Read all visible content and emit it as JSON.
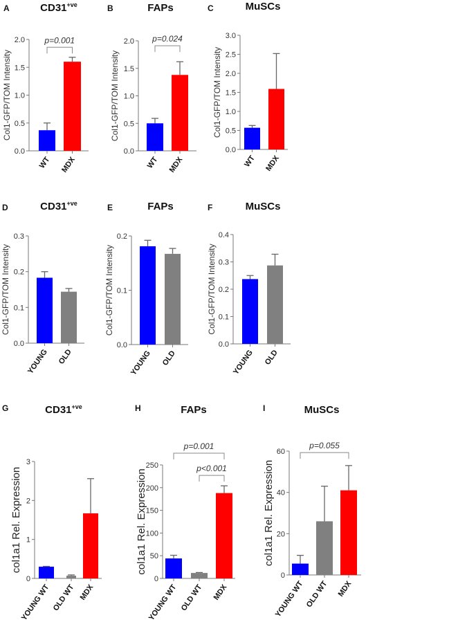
{
  "colors": {
    "blue": "#0000ff",
    "red": "#ff0000",
    "grey": "#808080",
    "axis": "#777777",
    "error": "#666666"
  },
  "chart_data": [
    {
      "id": "A",
      "type": "bar",
      "title": "CD31",
      "title_sup": "+ve",
      "ylabel": "Col1-GFP/TOM Intensity",
      "ylim": [
        0,
        2.0
      ],
      "ticks": [
        "0.0",
        "0.5",
        "1.0",
        "1.5",
        "2.0"
      ],
      "tick_values": [
        0,
        0.5,
        1,
        1.5,
        2
      ],
      "categories": [
        "WT",
        "MDX"
      ],
      "values": [
        0.37,
        1.6
      ],
      "errors_upper": [
        0.5,
        1.68
      ],
      "colors": [
        "blue",
        "red"
      ],
      "brackets": [
        {
          "from": 0,
          "to": 1,
          "level": 1.86,
          "label": "p=0.001"
        }
      ]
    },
    {
      "id": "B",
      "type": "bar",
      "title": "FAPs",
      "title_sup": "",
      "ylabel": "Col1-GFP/TOM Intensity",
      "ylim": [
        0,
        2.0
      ],
      "ticks": [
        "0.0",
        "0.5",
        "1.0",
        "1.5",
        "2.0"
      ],
      "tick_values": [
        0,
        0.5,
        1,
        1.5,
        2
      ],
      "categories": [
        "WT",
        "MDX"
      ],
      "values": [
        0.5,
        1.38
      ],
      "errors_upper": [
        0.59,
        1.62
      ],
      "colors": [
        "blue",
        "red"
      ],
      "brackets": [
        {
          "from": 0,
          "to": 1,
          "level": 1.91,
          "label": "p=0.024"
        }
      ]
    },
    {
      "id": "C",
      "type": "bar",
      "title": "MuSCs",
      "title_sup": "",
      "ylabel": "Col1-GFP/TOM Intensity",
      "ylim": [
        0,
        3.0
      ],
      "ticks": [
        "0.0",
        "0.5",
        "1.0",
        "1.5",
        "2.0",
        "2.5",
        "3.0"
      ],
      "tick_values": [
        0,
        0.5,
        1,
        1.5,
        2,
        2.5,
        3
      ],
      "categories": [
        "WT",
        "MDX"
      ],
      "values": [
        0.57,
        1.59
      ],
      "errors_upper": [
        0.63,
        2.52
      ],
      "colors": [
        "blue",
        "red"
      ],
      "brackets": []
    },
    {
      "id": "D",
      "type": "bar",
      "title": "CD31",
      "title_sup": "+ve",
      "ylabel": "Col1-GFP/TOM Intensity",
      "ylim": [
        0,
        0.3
      ],
      "ticks": [
        "0.0",
        "0.1",
        "0.2",
        "0.3"
      ],
      "tick_values": [
        0,
        0.1,
        0.2,
        0.3
      ],
      "categories": [
        "YOUNG",
        "OLD"
      ],
      "values": [
        0.183,
        0.144
      ],
      "errors_upper": [
        0.2,
        0.153
      ],
      "colors": [
        "blue",
        "grey"
      ],
      "brackets": []
    },
    {
      "id": "E",
      "type": "bar",
      "title": "FAPs",
      "title_sup": "",
      "ylabel": "Col1-GFP/TOM Intensity",
      "ylim": [
        0,
        0.2
      ],
      "ticks": [
        "0.0",
        "0.1",
        "0.2"
      ],
      "tick_values": [
        0,
        0.1,
        0.2
      ],
      "categories": [
        "YOUNG",
        "OLD"
      ],
      "values": [
        0.181,
        0.167
      ],
      "errors_upper": [
        0.192,
        0.177
      ],
      "colors": [
        "blue",
        "grey"
      ],
      "brackets": []
    },
    {
      "id": "F",
      "type": "bar",
      "title": "MuSCs",
      "title_sup": "",
      "ylabel": "Col1-GFP/TOM Intensity",
      "ylim": [
        0,
        0.4
      ],
      "ticks": [
        "0.0",
        "0.1",
        "0.2",
        "0.3",
        "0.4"
      ],
      "tick_values": [
        0,
        0.1,
        0.2,
        0.3,
        0.4
      ],
      "categories": [
        "YOUNG",
        "OLD"
      ],
      "values": [
        0.237,
        0.287
      ],
      "errors_upper": [
        0.25,
        0.328
      ],
      "colors": [
        "blue",
        "grey"
      ],
      "brackets": []
    },
    {
      "id": "G",
      "type": "bar",
      "title": "CD31",
      "title_sup": "+ve",
      "ylabel": "col1a1 Rel. Expression",
      "ylim": [
        0,
        3
      ],
      "ticks": [
        "0",
        "1",
        "2",
        "3"
      ],
      "tick_values": [
        0,
        1,
        2,
        3
      ],
      "categories": [
        "YOUNG WT",
        "OLD WT",
        "MDX"
      ],
      "values": [
        0.3,
        0.07,
        1.67
      ],
      "errors_upper": [
        0.31,
        0.09,
        2.56
      ],
      "colors": [
        "blue",
        "grey",
        "red"
      ],
      "brackets": []
    },
    {
      "id": "H",
      "type": "bar",
      "title": "FAPs",
      "title_sup": "",
      "ylabel": "col1a1 Rel. Expression",
      "ylim": [
        0,
        250
      ],
      "ticks": [
        "0",
        "50",
        "100",
        "150",
        "200",
        "250"
      ],
      "tick_values": [
        0,
        50,
        100,
        150,
        200,
        250
      ],
      "categories": [
        "YOUNG WT",
        "OLD WT",
        "MDX"
      ],
      "values": [
        44,
        12,
        188
      ],
      "errors_upper": [
        51,
        13,
        204
      ],
      "colors": [
        "blue",
        "grey",
        "red"
      ],
      "brackets": [
        {
          "from": 0,
          "to": 2,
          "level": 276,
          "label": "p=0.001"
        },
        {
          "from": 1,
          "to": 2,
          "level": 227,
          "label": "p<0.001"
        }
      ]
    },
    {
      "id": "I",
      "type": "bar",
      "title": "MuSCs",
      "title_sup": "",
      "ylabel": "col1a1 Rel. Expression",
      "ylim": [
        0,
        60
      ],
      "ticks": [
        "0",
        "20",
        "40",
        "60"
      ],
      "tick_values": [
        0,
        20,
        40,
        60
      ],
      "categories": [
        "YOUNG WT",
        "OLD WT",
        "MDX"
      ],
      "values": [
        5.5,
        26,
        41
      ],
      "errors_upper": [
        9.5,
        43,
        53
      ],
      "colors": [
        "blue",
        "grey",
        "red"
      ],
      "brackets": [
        {
          "from": 0,
          "to": 2,
          "level": 59.3,
          "label": "p=0.055"
        }
      ]
    }
  ]
}
